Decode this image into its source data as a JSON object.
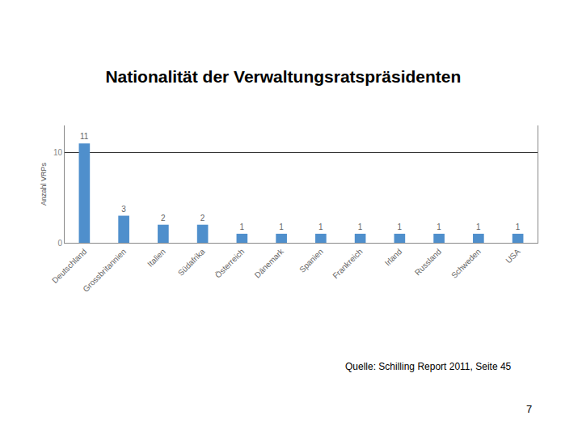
{
  "chart_data": {
    "type": "bar",
    "title": "Nationalität der Verwaltungsratspräsidenten",
    "y_label": "Anzahl VRPs",
    "categories": [
      "Deutschland",
      "Grossbritannien",
      "Italien",
      "Südafrika",
      "Österreich",
      "Dänemark",
      "Spanien",
      "Frankreich",
      "Irland",
      "Russland",
      "Schweden",
      "USA"
    ],
    "values": [
      11,
      3,
      2,
      2,
      1,
      1,
      1,
      1,
      1,
      1,
      1,
      1
    ],
    "color": "#4f8fcc",
    "ylim": [
      0,
      13
    ],
    "yticks": [
      0,
      10
    ],
    "grid": true,
    "data_labels": true,
    "annotations": [
      "Quelle: Schilling Report 2011, Seite 45"
    ],
    "page_number": 7
  }
}
